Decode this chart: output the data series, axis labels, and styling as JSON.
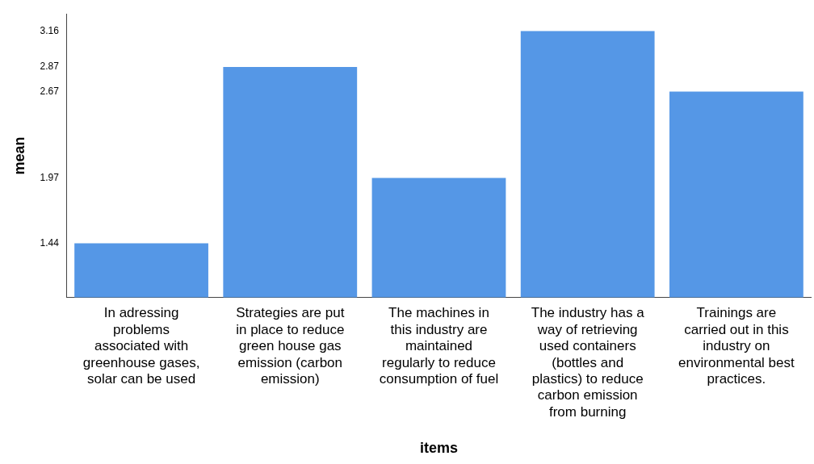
{
  "chart_data": {
    "type": "bar",
    "xlabel": "items",
    "ylabel": "mean",
    "categories": [
      "In adressing problems associated with greenhouse gases, solar can be used",
      "Strategies are put in place to reduce green house gas emission (carbon emission)",
      "The machines in this industry are maintained regularly to reduce consumption of fuel",
      "The industry has a way of retrieving used containers (bottles and plastics) to reduce carbon emission from burning",
      "Trainings are carried out in this industry on environmental best practices."
    ],
    "values": [
      1.44,
      2.87,
      1.97,
      3.16,
      2.67
    ],
    "color": "#5597e6",
    "ylim": [
      1,
      3.3
    ],
    "yticks": [
      1.44,
      1.97,
      2.67,
      2.87,
      3.16
    ],
    "grid": false,
    "legend": false
  }
}
